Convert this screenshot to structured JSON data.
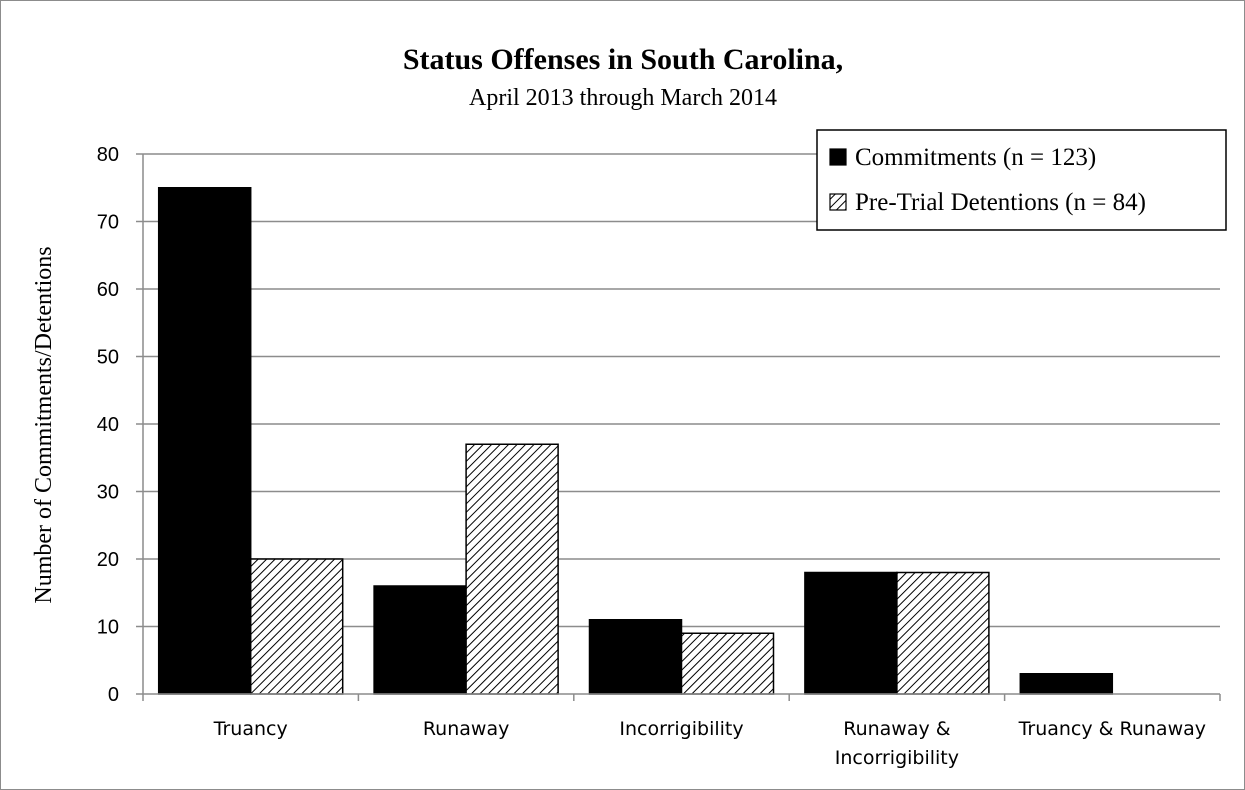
{
  "chart_data": {
    "type": "bar",
    "title": "Status Offenses in South Carolina,",
    "subtitle": "April 2013 through March 2014",
    "xlabel": "",
    "ylabel": "Number of Commitments/Detentions",
    "ylim": [
      0,
      80
    ],
    "yticks": [
      0,
      10,
      20,
      30,
      40,
      50,
      60,
      70,
      80
    ],
    "grid": true,
    "legend_position": "top-right",
    "categories": [
      [
        "Truancy"
      ],
      [
        "Runaway"
      ],
      [
        "Incorrigibility"
      ],
      [
        "Runaway &",
        "Incorrigibility"
      ],
      [
        "Truancy & Runaway"
      ]
    ],
    "series": [
      {
        "name": "Commitments (n = 123)",
        "values": [
          75,
          16,
          11,
          18,
          3
        ],
        "fill": "#000000",
        "pattern": "solid"
      },
      {
        "name": "Pre-Trial Detentions (n = 84)",
        "values": [
          20,
          37,
          9,
          18,
          0
        ],
        "fill": "#ffffff",
        "pattern": "diagonal-hatch"
      }
    ]
  },
  "colors": {
    "grid": "#8c8c8c",
    "axis": "#8c8c8c",
    "bar_stroke": "#000000",
    "solid_bar": "#000000",
    "hatch_line": "#000000"
  }
}
